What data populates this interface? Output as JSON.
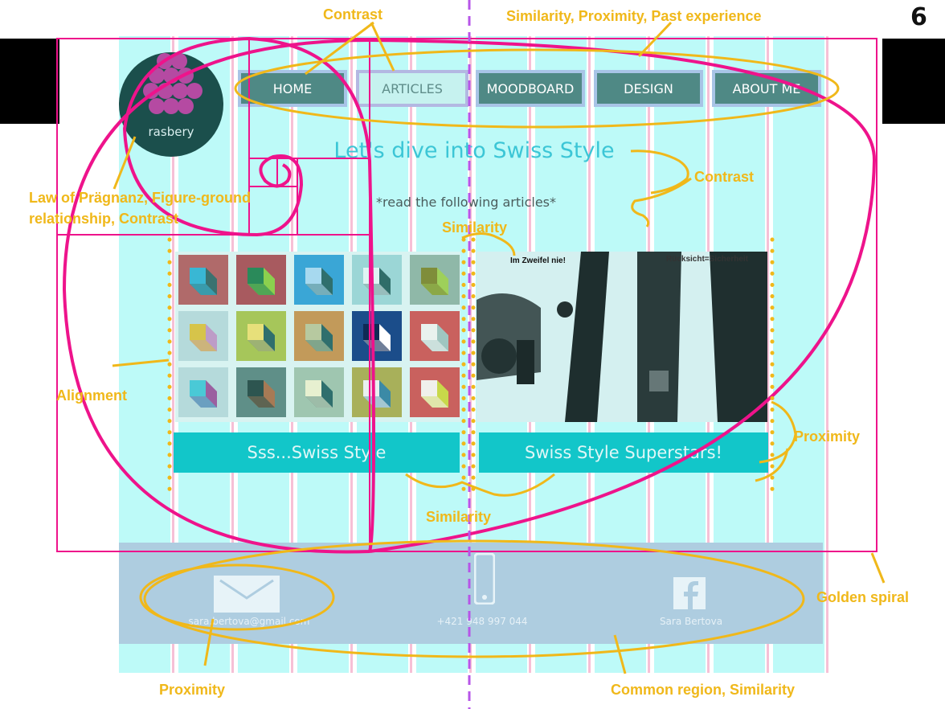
{
  "page_number": "6",
  "nav": {
    "items": [
      {
        "label": "HOME",
        "active": false
      },
      {
        "label": "ARTICLES",
        "active": true
      },
      {
        "label": "MOODBOARD",
        "active": false
      },
      {
        "label": "DESIGN",
        "active": false
      },
      {
        "label": "ABOUT ME",
        "active": false
      }
    ]
  },
  "logo": {
    "text": "rasbery"
  },
  "hero": {
    "headline": "Let's dive into Swiss Style",
    "subline": "*read the following articles*"
  },
  "cards": [
    {
      "title": "Sss...Swiss Style",
      "image": "geometric-cube-grid"
    },
    {
      "title": "Swiss Style Superstars!",
      "image": "vintage-poster",
      "poster_texts": [
        "Im Zweifel nie!",
        "Rücksicht=Sicherheit"
      ]
    }
  ],
  "footer": {
    "email": "sara.bertova@gmail.com",
    "phone": "+421 948 997 044",
    "facebook": "Sara Bertova"
  },
  "annotations": {
    "contrast_top": "Contrast",
    "similarity_top": "Similarity, Proximity, Past experience",
    "contrast_right": "Contrast",
    "pragnanz_line1": "Law of Prägnanz, Figure-ground",
    "pragnanz_line2": "relationship, Contrast",
    "similarity_mid": "Similarity",
    "alignment": "Alignment",
    "proximity_right": "Proximity",
    "similarity_bottom": "Similarity",
    "golden_spiral": "Golden spiral",
    "proximity_bottom": "Proximity",
    "common_region": "Common region, Similarity"
  },
  "colors": {
    "column": "#bdfaf8",
    "annotation": "#f0b81a",
    "spiral": "#ee138b",
    "nav_button": "#4f8985",
    "card_button": "#12c6c9",
    "footer": "#aecde0",
    "logo_bg": "#1b4f4c",
    "logo_berry": "#b54aa2"
  }
}
